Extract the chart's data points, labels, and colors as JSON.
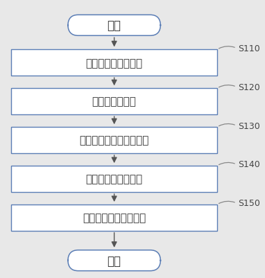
{
  "bg_color": "#e8e8e8",
  "box_color": "#ffffff",
  "box_edge_color": "#5a7db5",
  "box_edge_color2": "#888888",
  "text_color": "#333333",
  "arrow_color": "#555555",
  "label_color": "#444444",
  "start_end_label": [
    "开始",
    "结束"
  ],
  "steps": [
    "骨关节深度数据采集",
    "骨关节角度计算",
    "大量样本采集与聚类分析",
    "骨关节功能测试评估",
    "可视化显示与评估分析"
  ],
  "step_labels": [
    "S110",
    "S120",
    "S130",
    "S140",
    "S150"
  ],
  "fig_width": 3.82,
  "fig_height": 4.02,
  "dpi": 100
}
